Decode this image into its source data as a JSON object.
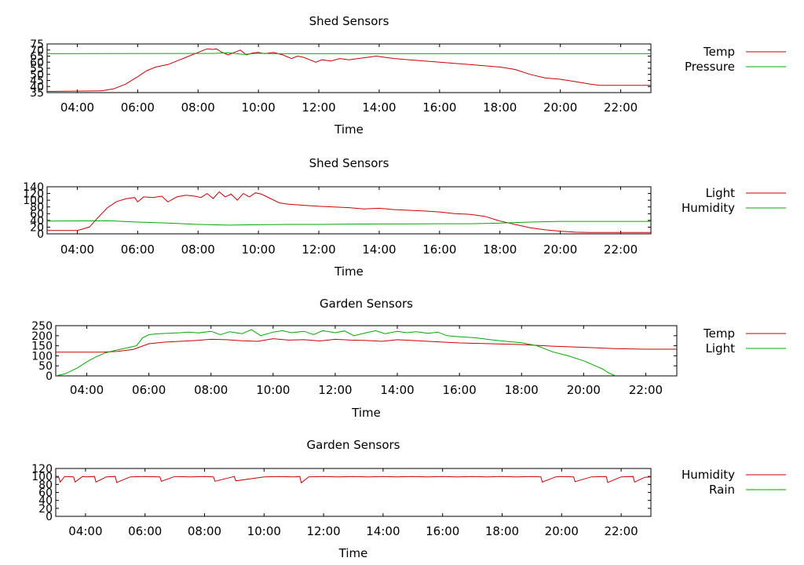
{
  "charts": [
    {
      "id": "shed-temp-pressure",
      "type": "line",
      "title": "Shed Sensors",
      "xlabel": "Time",
      "ylabel": "",
      "xlim": [
        3.0,
        23.0
      ],
      "ylim": [
        35,
        75
      ],
      "yticks": [
        35,
        40,
        45,
        50,
        55,
        60,
        65,
        70,
        75
      ],
      "xticks": [
        4,
        6,
        8,
        10,
        12,
        14,
        16,
        18,
        20,
        22
      ],
      "xtick_labels": [
        "04:00",
        "06:00",
        "08:00",
        "10:00",
        "12:00",
        "14:00",
        "16:00",
        "18:00",
        "20:00",
        "22:00"
      ],
      "legend_position": "right",
      "series": [
        {
          "name": "Temp",
          "color": "#cc0000",
          "x": [
            3.0,
            4.8,
            5.2,
            5.6,
            6.0,
            6.3,
            6.6,
            7.0,
            7.3,
            7.6,
            7.9,
            8.1,
            8.3,
            8.5,
            8.6,
            8.8,
            9.0,
            9.2,
            9.4,
            9.6,
            9.8,
            10.0,
            10.2,
            10.5,
            10.8,
            11.1,
            11.3,
            11.5,
            11.7,
            11.9,
            12.1,
            12.4,
            12.7,
            13.0,
            13.3,
            13.6,
            13.9,
            14.2,
            14.5,
            15.0,
            16.0,
            17.0,
            18.0,
            18.5,
            19.0,
            19.5,
            20.0,
            20.5,
            21.0,
            21.3,
            21.6,
            22.0,
            23.0
          ],
          "values": [
            36,
            36.5,
            38,
            42,
            48,
            53,
            56,
            58,
            61,
            64,
            67,
            69,
            71,
            70.5,
            71,
            68,
            66,
            68,
            70,
            66,
            67.5,
            68,
            67,
            68,
            66,
            63,
            65,
            64,
            62,
            60,
            62,
            61,
            63,
            62,
            63,
            64,
            65,
            64,
            63,
            62,
            60,
            58,
            56,
            54,
            50,
            47,
            46,
            44,
            42,
            41,
            41,
            41,
            41
          ]
        },
        {
          "name": "Pressure",
          "color": "#00aa00",
          "x": [
            3.0,
            8.5,
            9.0,
            9.5,
            10.0,
            10.5,
            11.0,
            20.0,
            23.0
          ],
          "values": [
            67,
            67.2,
            67.8,
            66.5,
            67.3,
            67.0,
            67.0,
            67.0,
            67.0
          ]
        }
      ]
    },
    {
      "id": "shed-light-humidity",
      "type": "line",
      "title": "Shed Sensors",
      "xlabel": "Time",
      "ylabel": "",
      "xlim": [
        3.0,
        23.0
      ],
      "ylim": [
        0,
        140
      ],
      "yticks": [
        0,
        20,
        40,
        60,
        80,
        100,
        120,
        140
      ],
      "xticks": [
        4,
        6,
        8,
        10,
        12,
        14,
        16,
        18,
        20,
        22
      ],
      "xtick_labels": [
        "04:00",
        "06:00",
        "08:00",
        "10:00",
        "12:00",
        "14:00",
        "16:00",
        "18:00",
        "20:00",
        "22:00"
      ],
      "legend_position": "right",
      "series": [
        {
          "name": "Light",
          "color": "#cc0000",
          "x": [
            3.0,
            4.0,
            4.4,
            4.7,
            5.0,
            5.3,
            5.6,
            5.9,
            6.0,
            6.2,
            6.5,
            6.8,
            7.0,
            7.3,
            7.6,
            7.9,
            8.1,
            8.3,
            8.5,
            8.7,
            8.9,
            9.1,
            9.3,
            9.5,
            9.7,
            9.9,
            10.1,
            10.4,
            10.7,
            11.0,
            11.5,
            12.0,
            12.5,
            13.0,
            13.5,
            14.0,
            14.5,
            15.0,
            15.5,
            16.0,
            16.5,
            17.0,
            17.5,
            18.0,
            18.5,
            19.0,
            19.5,
            20.0,
            20.5,
            21.0,
            21.5,
            22.0,
            23.0
          ],
          "values": [
            10,
            10,
            20,
            50,
            78,
            96,
            104,
            108,
            95,
            110,
            108,
            112,
            95,
            110,
            115,
            112,
            108,
            120,
            105,
            125,
            110,
            118,
            100,
            120,
            110,
            122,
            118,
            105,
            92,
            88,
            85,
            82,
            80,
            78,
            74,
            76,
            72,
            70,
            68,
            65,
            60,
            58,
            52,
            38,
            28,
            18,
            12,
            8,
            5,
            4,
            4,
            4,
            4
          ]
        },
        {
          "name": "Humidity",
          "color": "#00aa00",
          "x": [
            3.0,
            4.0,
            5.0,
            6.0,
            7.0,
            8.0,
            9.0,
            10.0,
            11.0,
            12.0,
            13.0,
            14.0,
            15.0,
            16.0,
            17.0,
            18.0,
            19.0,
            20.0,
            21.0,
            22.0,
            23.0
          ],
          "values": [
            38,
            38.5,
            39,
            35,
            32,
            28,
            26,
            27,
            28,
            28,
            29,
            29.5,
            29.5,
            30,
            30,
            32,
            35,
            37,
            37,
            37,
            37
          ]
        }
      ]
    },
    {
      "id": "garden-temp-light",
      "type": "line",
      "title": "Garden Sensors",
      "xlabel": "Time",
      "ylabel": "",
      "xlim": [
        3.0,
        23.0
      ],
      "ylim": [
        0,
        250
      ],
      "yticks": [
        0,
        50,
        100,
        150,
        200,
        250
      ],
      "xticks": [
        4,
        6,
        8,
        10,
        12,
        14,
        16,
        18,
        20,
        22
      ],
      "xtick_labels": [
        "04:00",
        "06:00",
        "08:00",
        "10:00",
        "12:00",
        "14:00",
        "16:00",
        "18:00",
        "20:00",
        "22:00"
      ],
      "legend_position": "right",
      "series": [
        {
          "name": "Temp",
          "color": "#cc0000",
          "x": [
            3.0,
            4.5,
            5.0,
            5.5,
            6.0,
            6.5,
            7.0,
            7.5,
            8.0,
            8.5,
            9.0,
            9.5,
            10.0,
            10.5,
            11.0,
            11.5,
            12.0,
            12.5,
            13.0,
            13.5,
            14.0,
            14.5,
            15.0,
            15.5,
            16.0,
            17.0,
            18.0,
            19.0,
            20.0,
            21.0,
            22.0,
            23.0
          ],
          "values": [
            118,
            118,
            122,
            132,
            160,
            168,
            172,
            176,
            182,
            180,
            175,
            172,
            185,
            178,
            180,
            174,
            182,
            178,
            176,
            172,
            180,
            176,
            172,
            168,
            164,
            160,
            156,
            148,
            142,
            136,
            133,
            133
          ]
        },
        {
          "name": "Light",
          "color": "#00aa00",
          "x": [
            3.0,
            3.3,
            3.7,
            4.0,
            4.3,
            4.6,
            5.0,
            5.3,
            5.6,
            5.8,
            6.0,
            6.3,
            6.6,
            7.0,
            7.3,
            7.6,
            8.0,
            8.3,
            8.6,
            9.0,
            9.3,
            9.6,
            10.0,
            10.3,
            10.6,
            11.0,
            11.3,
            11.6,
            12.0,
            12.3,
            12.6,
            13.0,
            13.3,
            13.6,
            14.0,
            14.3,
            14.6,
            15.0,
            15.3,
            15.6,
            16.0,
            16.5,
            17.0,
            17.5,
            18.0,
            18.5,
            19.0,
            19.5,
            20.0,
            20.3,
            20.6,
            20.8,
            21.0
          ],
          "values": [
            0,
            10,
            40,
            70,
            95,
            115,
            130,
            140,
            150,
            190,
            205,
            210,
            212,
            215,
            218,
            214,
            222,
            205,
            220,
            210,
            230,
            200,
            218,
            225,
            215,
            222,
            205,
            225,
            215,
            224,
            200,
            215,
            225,
            210,
            222,
            215,
            220,
            212,
            218,
            200,
            195,
            190,
            180,
            172,
            165,
            150,
            120,
            100,
            75,
            55,
            35,
            15,
            2
          ]
        }
      ]
    },
    {
      "id": "garden-humidity-rain",
      "type": "line",
      "title": "Garden Sensors",
      "xlabel": "Time",
      "ylabel": "",
      "xlim": [
        3.0,
        23.0
      ],
      "ylim": [
        0,
        120
      ],
      "yticks": [
        0,
        20,
        40,
        60,
        80,
        100,
        120
      ],
      "xticks": [
        4,
        6,
        8,
        10,
        12,
        14,
        16,
        18,
        20,
        22
      ],
      "xtick_labels": [
        "04:00",
        "06:00",
        "08:00",
        "10:00",
        "12:00",
        "14:00",
        "16:00",
        "18:00",
        "20:00",
        "22:00"
      ],
      "legend_position": "right",
      "series": [
        {
          "name": "Humidity",
          "color": "#cc0000",
          "x": [
            3.0,
            3.1,
            3.15,
            3.3,
            3.6,
            3.65,
            3.9,
            4.0,
            4.3,
            4.35,
            4.7,
            5.0,
            5.05,
            5.5,
            6.0,
            6.5,
            6.55,
            7.0,
            7.5,
            8.0,
            8.3,
            8.35,
            9.0,
            9.05,
            10.0,
            10.5,
            11.0,
            11.2,
            11.25,
            11.5,
            12.0,
            12.5,
            13.0,
            13.5,
            14.0,
            14.5,
            15.0,
            15.5,
            16.0,
            16.5,
            17.0,
            17.5,
            18.0,
            18.5,
            19.0,
            19.3,
            19.35,
            19.8,
            20.0,
            20.4,
            20.45,
            21.0,
            21.5,
            21.55,
            22.0,
            22.4,
            22.45,
            22.8,
            23.0
          ],
          "values": [
            98,
            98,
            86,
            100,
            99,
            86,
            100,
            99,
            100,
            86,
            99,
            100,
            85,
            99,
            100,
            99,
            88,
            100,
            99,
            100,
            99,
            88,
            100,
            89,
            99,
            100,
            99,
            100,
            84,
            99,
            100,
            99,
            100,
            99,
            100,
            99,
            100,
            99,
            100,
            99,
            100,
            99,
            100,
            99,
            100,
            99,
            86,
            99,
            100,
            99,
            87,
            99,
            100,
            85,
            99,
            100,
            86,
            98,
            99
          ]
        },
        {
          "name": "Rain",
          "color": "#00aa00",
          "x": [],
          "values": []
        }
      ]
    }
  ]
}
